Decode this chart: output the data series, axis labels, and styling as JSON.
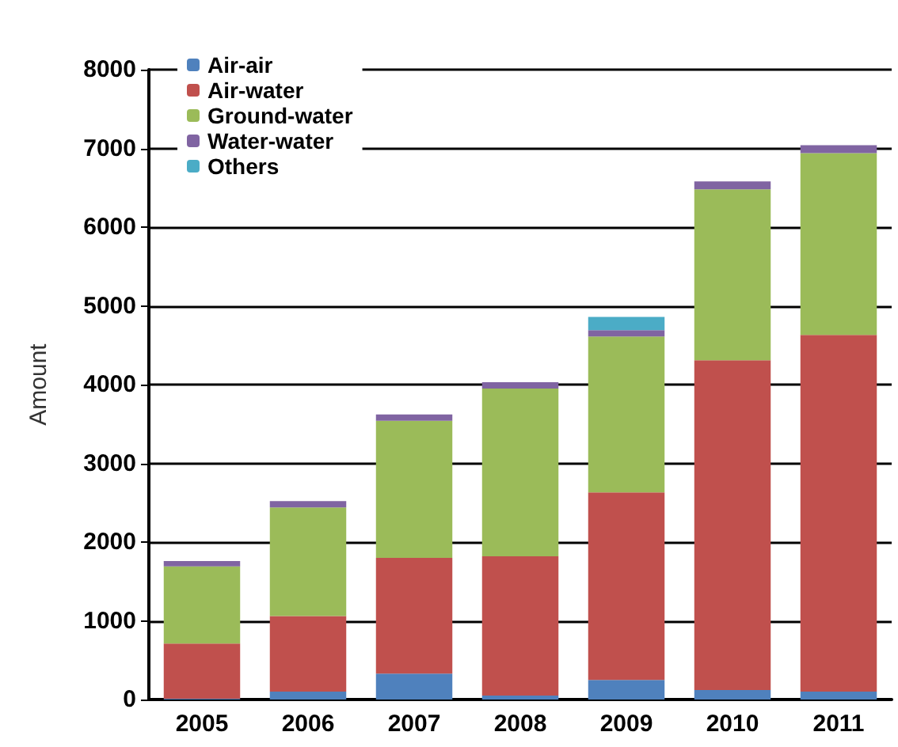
{
  "chart_data": {
    "type": "bar",
    "stacked": true,
    "ylabel": "Amount",
    "categories": [
      "2005",
      "2006",
      "2007",
      "2008",
      "2009",
      "2010",
      "2011"
    ],
    "series": [
      {
        "name": "Air-air",
        "color": "#4f81bd",
        "values": [
          10,
          100,
          330,
          50,
          250,
          120,
          100
        ]
      },
      {
        "name": "Air-water",
        "color": "#c0504d",
        "values": [
          700,
          960,
          1470,
          1770,
          2380,
          4190,
          4530
        ]
      },
      {
        "name": "Ground-water",
        "color": "#9bbb59",
        "values": [
          980,
          1380,
          1740,
          2130,
          1980,
          2170,
          2310
        ]
      },
      {
        "name": "Water-water",
        "color": "#8064a2",
        "values": [
          70,
          80,
          80,
          80,
          80,
          100,
          100
        ]
      },
      {
        "name": "Others",
        "color": "#4bacc6",
        "values": [
          0,
          0,
          0,
          0,
          170,
          0,
          0
        ]
      }
    ],
    "ylim": [
      0,
      8000
    ],
    "yticks": [
      0,
      1000,
      2000,
      3000,
      4000,
      5000,
      6000,
      7000,
      8000
    ],
    "grid": "y",
    "legend": "top left"
  }
}
